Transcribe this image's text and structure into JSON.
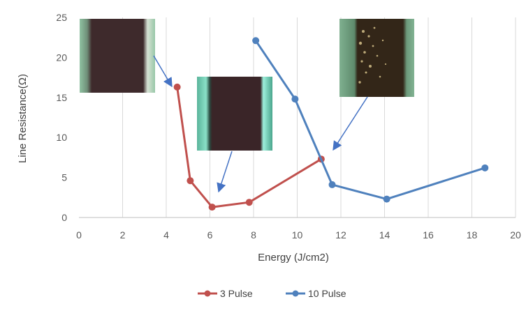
{
  "chart_data": {
    "type": "line",
    "title": "",
    "xlabel": "Energy (J/cm2)",
    "ylabel": "Line Resistance(Ω)",
    "xlim": [
      0,
      20
    ],
    "ylim": [
      0,
      25
    ],
    "x_ticks": [
      0,
      2,
      4,
      6,
      8,
      10,
      12,
      14,
      16,
      18,
      20
    ],
    "y_ticks": [
      0,
      5,
      10,
      15,
      20,
      25
    ],
    "grid": "vertical",
    "legend_position": "bottom",
    "series": [
      {
        "name": "3 Pulse",
        "color": "#c0504d",
        "x": [
          4.5,
          5.1,
          6.1,
          7.8,
          11.1
        ],
        "y": [
          16.3,
          4.6,
          1.3,
          1.9,
          7.3
        ]
      },
      {
        "name": "10 Pulse",
        "color": "#4f81bd",
        "x": [
          8.1,
          9.9,
          11.6,
          14.1,
          18.6
        ],
        "y": [
          22.1,
          14.8,
          4.1,
          2.3,
          6.2
        ]
      }
    ],
    "annotations": [
      {
        "name": "3 Pulse line image (low energy)",
        "points_to": [
          4.5,
          16.3
        ]
      },
      {
        "name": "3 Pulse line image (optimal)",
        "points_to": [
          6.1,
          1.3
        ]
      },
      {
        "name": "10 Pulse line image",
        "points_to": [
          11.1,
          7.3
        ]
      }
    ]
  }
}
